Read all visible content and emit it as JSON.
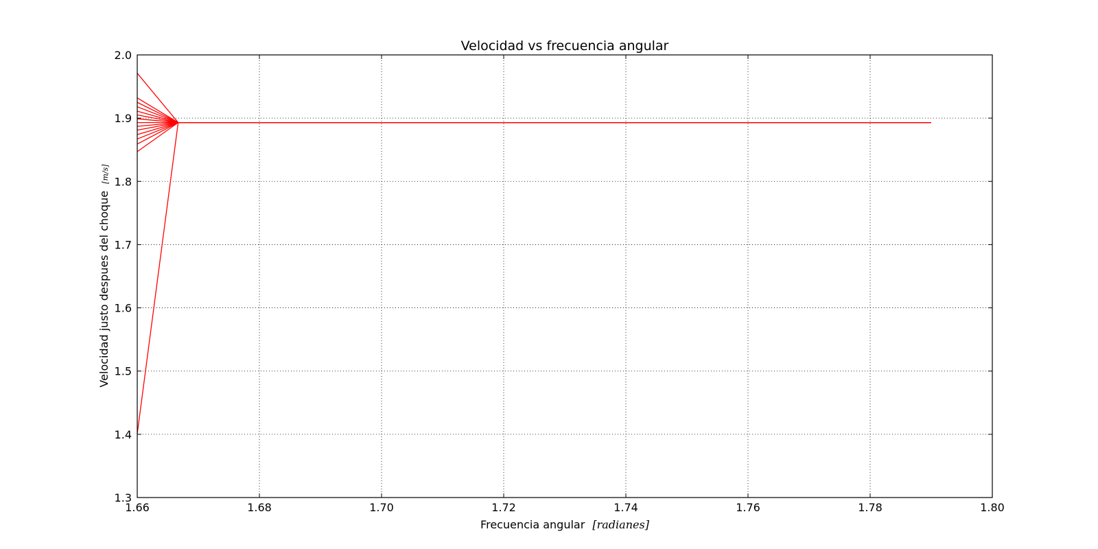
{
  "chart_data": {
    "type": "line",
    "title": "Velocidad vs frecuencia angular",
    "xlabel": "Frecuencia angular",
    "xlabel_unit": "[radianes]",
    "ylabel": "Velocidad justo despues del choque",
    "ylabel_unit": "[m/s]",
    "xlim": [
      1.66,
      1.8
    ],
    "ylim": [
      1.3,
      2.0
    ],
    "xticks": [
      1.66,
      1.68,
      1.7,
      1.72,
      1.74,
      1.76,
      1.78,
      1.8
    ],
    "yticks": [
      1.3,
      1.4,
      1.5,
      1.6,
      1.7,
      1.8,
      1.9,
      2.0
    ],
    "xtick_labels": [
      "1.66",
      "1.68",
      "1.70",
      "1.72",
      "1.74",
      "1.76",
      "1.78",
      "1.80"
    ],
    "ytick_labels": [
      "1.3",
      "1.4",
      "1.5",
      "1.6",
      "1.7",
      "1.8",
      "1.9",
      "2.0"
    ],
    "grid": true,
    "grid_style": "dotted",
    "line_color": "#ff0000",
    "series": [
      {
        "x": [
          1.66,
          1.6667,
          1.79
        ],
        "y": [
          1.971,
          1.893,
          1.893
        ]
      },
      {
        "x": [
          1.66,
          1.6667,
          1.79
        ],
        "y": [
          1.932,
          1.893,
          1.893
        ]
      },
      {
        "x": [
          1.66,
          1.6667,
          1.79
        ],
        "y": [
          1.925,
          1.893,
          1.893
        ]
      },
      {
        "x": [
          1.66,
          1.6667,
          1.79
        ],
        "y": [
          1.918,
          1.893,
          1.893
        ]
      },
      {
        "x": [
          1.66,
          1.6667,
          1.79
        ],
        "y": [
          1.911,
          1.893,
          1.893
        ]
      },
      {
        "x": [
          1.66,
          1.6667,
          1.79
        ],
        "y": [
          1.905,
          1.893,
          1.893
        ]
      },
      {
        "x": [
          1.66,
          1.6667,
          1.79
        ],
        "y": [
          1.899,
          1.893,
          1.893
        ]
      },
      {
        "x": [
          1.66,
          1.6667,
          1.79
        ],
        "y": [
          1.893,
          1.893,
          1.893
        ]
      },
      {
        "x": [
          1.66,
          1.6667,
          1.79
        ],
        "y": [
          1.887,
          1.893,
          1.893
        ]
      },
      {
        "x": [
          1.66,
          1.6667,
          1.79
        ],
        "y": [
          1.881,
          1.893,
          1.893
        ]
      },
      {
        "x": [
          1.66,
          1.6667,
          1.79
        ],
        "y": [
          1.874,
          1.893,
          1.893
        ]
      },
      {
        "x": [
          1.66,
          1.6667,
          1.79
        ],
        "y": [
          1.867,
          1.893,
          1.893
        ]
      },
      {
        "x": [
          1.66,
          1.6667,
          1.79
        ],
        "y": [
          1.859,
          1.893,
          1.893
        ]
      },
      {
        "x": [
          1.66,
          1.6667,
          1.79
        ],
        "y": [
          1.847,
          1.893,
          1.893
        ]
      },
      {
        "x": [
          1.66,
          1.6667,
          1.79
        ],
        "y": [
          1.401,
          1.893,
          1.893
        ]
      }
    ]
  }
}
